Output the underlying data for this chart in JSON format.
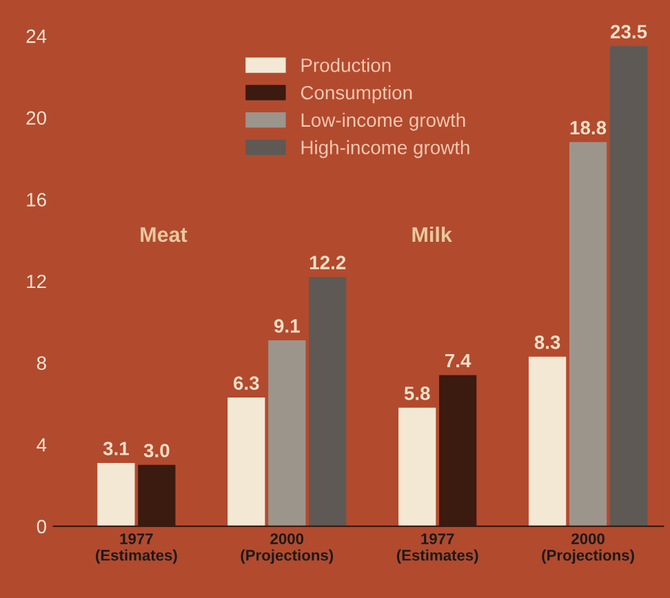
{
  "chart_data": {
    "type": "bar",
    "categories": [
      "1977\n(Estimates)",
      "2000\n(Projections)",
      "1977\n(Estimates)",
      "2000\n(Projections)"
    ],
    "series": [
      {
        "name": "Production",
        "color": "#f3e8d4",
        "values": [
          3.1,
          6.3,
          5.8,
          8.3
        ],
        "value_labels": [
          "3.1",
          "6.3",
          "5.8",
          "8.3"
        ]
      },
      {
        "name": "Consumption",
        "color": "#3b1a10",
        "values": [
          3.0,
          null,
          7.4,
          null
        ],
        "value_labels": [
          "3.0",
          null,
          "7.4",
          null
        ]
      },
      {
        "name": "Low-income growth",
        "color": "#9c958c",
        "values": [
          null,
          9.1,
          null,
          18.8
        ],
        "value_labels": [
          null,
          "9.1",
          null,
          "18.8"
        ]
      },
      {
        "name": "High-income growth",
        "color": "#5e5954",
        "values": [
          null,
          12.2,
          null,
          23.5
        ],
        "value_labels": [
          null,
          "12.2",
          null,
          "23.5"
        ]
      }
    ],
    "annotations": [
      "Meat",
      "Milk"
    ],
    "ylim": [
      0,
      24
    ],
    "yticks": [
      0,
      4,
      8,
      12,
      16,
      20,
      24
    ],
    "grid": false,
    "legend": "top"
  }
}
